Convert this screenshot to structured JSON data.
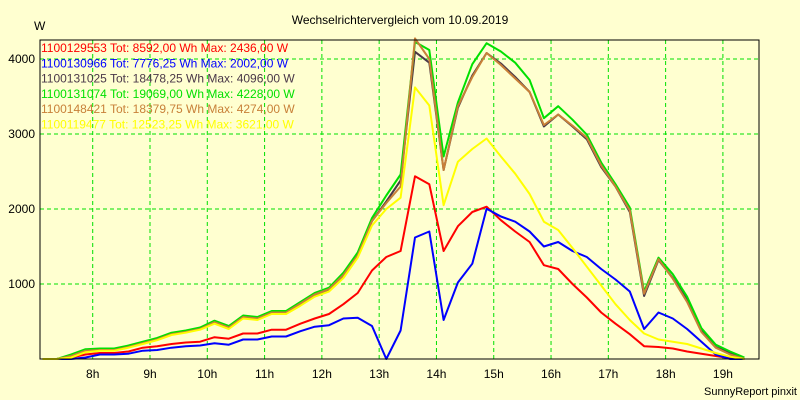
{
  "chart_data": {
    "type": "line",
    "title": "Wechselrichtervergleich vom 10.09.2019",
    "ylabel": "W",
    "xlabel": "",
    "footer": "SunnyReport pinxit",
    "xlim": [
      7.08,
      19.63
    ],
    "ylim": [
      0,
      4253
    ],
    "grid": true,
    "legend_placement": "top-left",
    "x_ticks": [
      {
        "value": 8,
        "label": "8h"
      },
      {
        "value": 9,
        "label": "9h"
      },
      {
        "value": 10,
        "label": "10h"
      },
      {
        "value": 11,
        "label": "11h"
      },
      {
        "value": 12,
        "label": "12h"
      },
      {
        "value": 13,
        "label": "13h"
      },
      {
        "value": 14,
        "label": "14h"
      },
      {
        "value": 15,
        "label": "15h"
      },
      {
        "value": 16,
        "label": "16h"
      },
      {
        "value": 17,
        "label": "17h"
      },
      {
        "value": 18,
        "label": "18h"
      },
      {
        "value": 19,
        "label": "19h"
      }
    ],
    "y_ticks": [
      {
        "value": 1000,
        "label": "1000"
      },
      {
        "value": 2000,
        "label": "2000"
      },
      {
        "value": 3000,
        "label": "3000"
      },
      {
        "value": 4000,
        "label": "4000"
      }
    ],
    "x_start": 7.125,
    "x_step": 0.25,
    "series": [
      {
        "name": "1100129553",
        "legend": "1100129553 Tot: 8592,00 Wh Max: 2436,00 W",
        "color": "#ff0000",
        "values": [
          0,
          0,
          20,
          60,
          80,
          80,
          100,
          150,
          170,
          200,
          220,
          230,
          290,
          270,
          340,
          340,
          390,
          390,
          470,
          540,
          600,
          730,
          880,
          1180,
          1360,
          1440,
          2436,
          2330,
          1440,
          1770,
          1960,
          2030,
          1850,
          1700,
          1560,
          1250,
          1200,
          1000,
          820,
          620,
          470,
          330,
          170,
          160,
          140,
          100,
          70,
          40,
          10,
          0
        ]
      },
      {
        "name": "1100130966",
        "legend": "1100130966 Tot: 7776,25 Wh Max: 2002,00 W",
        "color": "#0000ff",
        "values": [
          0,
          0,
          0,
          20,
          60,
          60,
          70,
          110,
          120,
          150,
          170,
          180,
          210,
          190,
          260,
          260,
          300,
          300,
          370,
          430,
          450,
          540,
          550,
          440,
          0,
          380,
          1620,
          1700,
          520,
          1020,
          1270,
          2002,
          1900,
          1830,
          1700,
          1500,
          1560,
          1440,
          1360,
          1200,
          1060,
          900,
          400,
          620,
          540,
          400,
          230,
          60,
          0,
          0
        ]
      },
      {
        "name": "1100131025",
        "legend": "1100131025 Tot: 18478,25 Wh Max: 4096,00 W",
        "color": "#4a3848",
        "values": [
          0,
          0,
          40,
          110,
          120,
          120,
          160,
          210,
          260,
          330,
          360,
          400,
          490,
          420,
          560,
          540,
          620,
          620,
          730,
          850,
          920,
          1110,
          1380,
          1840,
          2100,
          2380,
          4096,
          3950,
          2520,
          3350,
          3780,
          4080,
          3940,
          3760,
          3560,
          3100,
          3260,
          3100,
          2930,
          2560,
          2300,
          1960,
          840,
          1320,
          1080,
          790,
          390,
          160,
          80,
          0
        ]
      },
      {
        "name": "1100131074",
        "legend": "1100131074 Tot: 19069,00 Wh Max: 4228,00 W",
        "color": "#00e000",
        "values": [
          0,
          0,
          60,
          130,
          140,
          140,
          180,
          230,
          280,
          350,
          380,
          420,
          510,
          440,
          580,
          560,
          640,
          640,
          760,
          880,
          950,
          1150,
          1420,
          1880,
          2180,
          2460,
          4228,
          4120,
          2700,
          3420,
          3930,
          4210,
          4100,
          3950,
          3720,
          3210,
          3370,
          3190,
          2990,
          2620,
          2330,
          2020,
          900,
          1350,
          1130,
          830,
          410,
          190,
          100,
          20
        ]
      },
      {
        "name": "1100148421",
        "legend": "1100148421 Tot: 18379,75 Wh Max: 4274,00 W",
        "color": "#c88038",
        "values": [
          0,
          0,
          40,
          110,
          120,
          120,
          160,
          210,
          260,
          330,
          360,
          400,
          490,
          420,
          560,
          540,
          620,
          620,
          740,
          860,
          930,
          1120,
          1380,
          1840,
          2080,
          2300,
          4274,
          4000,
          2520,
          3370,
          3760,
          4080,
          3920,
          3740,
          3560,
          3120,
          3260,
          3110,
          2950,
          2580,
          2300,
          1980,
          870,
          1330,
          1070,
          760,
          360,
          150,
          60,
          0
        ]
      },
      {
        "name": "1100119477",
        "legend": "1100119477 Tot: 12523,25 Wh Max: 3621,00 W",
        "color": "#ffff00",
        "values": [
          0,
          0,
          20,
          90,
          110,
          110,
          150,
          200,
          250,
          320,
          350,
          390,
          470,
          400,
          540,
          520,
          600,
          600,
          710,
          830,
          900,
          1080,
          1350,
          1780,
          2000,
          2150,
          3621,
          3380,
          2050,
          2630,
          2800,
          2940,
          2700,
          2470,
          2200,
          1830,
          1720,
          1480,
          1230,
          980,
          730,
          520,
          340,
          260,
          230,
          200,
          140,
          80,
          30,
          0
        ]
      }
    ]
  }
}
